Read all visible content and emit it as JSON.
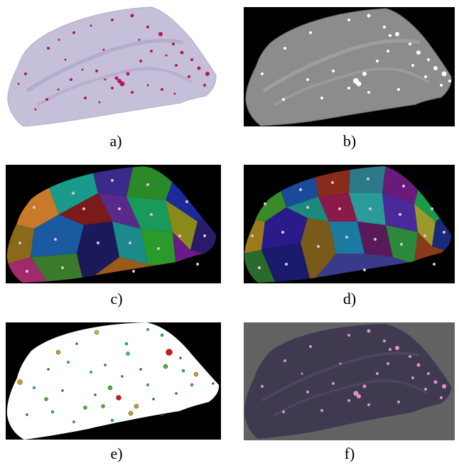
{
  "captions": {
    "a": "a)",
    "b": "b)",
    "c": "c)",
    "d": "d)",
    "e": "e)",
    "f": "f)"
  },
  "colors": {
    "tissue_stain": "#c4bcd8",
    "plaque_stain": "#b3195a",
    "grayscale_tissue": "#8c8c8c",
    "black_background": "#000000",
    "graph_fill": "#ffffff",
    "overlay_background": "#626262",
    "overlay_tissue": "#403a50",
    "overlay_plaque": "#e28fd3"
  }
}
